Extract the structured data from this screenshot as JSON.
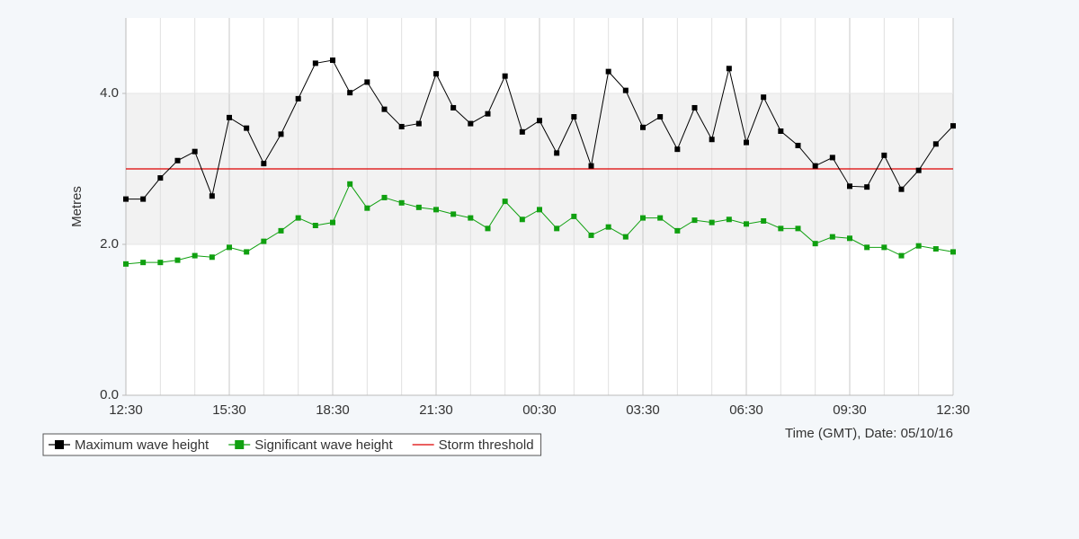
{
  "chart_data": {
    "type": "line",
    "x_label": "Time (GMT), Date: 05/10/16",
    "y_label": "Metres",
    "categories": [
      "12:30",
      null,
      null,
      null,
      null,
      null,
      "15:30",
      null,
      null,
      null,
      null,
      null,
      "18:30",
      null,
      null,
      null,
      null,
      null,
      "21:30",
      null,
      null,
      null,
      null,
      null,
      "00:30",
      null,
      null,
      null,
      null,
      null,
      "03:30",
      null,
      null,
      null,
      null,
      null,
      "06:30",
      null,
      null,
      null,
      null,
      null,
      "09:30",
      null,
      null,
      null,
      null,
      null,
      "12:30"
    ],
    "series": [
      {
        "name": "Maximum wave height",
        "color": "#000000",
        "values": [
          2.6,
          2.6,
          2.88,
          3.11,
          3.23,
          2.64,
          3.68,
          3.54,
          3.07,
          3.46,
          3.93,
          4.4,
          4.44,
          4.01,
          4.15,
          3.79,
          3.56,
          3.6,
          4.26,
          3.81,
          3.6,
          3.73,
          4.23,
          3.49,
          3.64,
          3.21,
          3.69,
          3.04,
          4.29,
          4.04,
          3.55,
          3.69,
          3.26,
          3.81,
          3.39,
          4.33,
          3.35,
          3.95,
          3.5,
          3.31,
          3.04,
          3.15,
          2.77,
          2.76,
          3.18,
          2.73,
          2.98,
          3.33,
          3.57
        ]
      },
      {
        "name": "Significant wave height",
        "color": "#10a010",
        "values": [
          1.74,
          1.76,
          1.76,
          1.79,
          1.85,
          1.83,
          1.96,
          1.9,
          2.04,
          2.18,
          2.35,
          2.25,
          2.29,
          2.8,
          2.48,
          2.62,
          2.55,
          2.49,
          2.46,
          2.4,
          2.35,
          2.21,
          2.57,
          2.33,
          2.46,
          2.21,
          2.37,
          2.12,
          2.23,
          2.1,
          2.35,
          2.35,
          2.18,
          2.32,
          2.29,
          2.33,
          2.27,
          2.31,
          2.21,
          2.21,
          2.01,
          2.1,
          2.08,
          1.96,
          1.96,
          1.85,
          1.98,
          1.94,
          1.9
        ]
      }
    ],
    "threshold": {
      "name": "Storm threshold",
      "color": "#dd0000",
      "value": 3
    },
    "shaded_band": [
      2,
      4
    ],
    "ylim": [
      0,
      5
    ],
    "yticks": [
      {
        "value": 0,
        "label": "0.0"
      },
      {
        "value": 2,
        "label": "2.0"
      },
      {
        "value": 4,
        "label": "4.0"
      }
    ],
    "grid": true,
    "legend": "bottom-left"
  }
}
